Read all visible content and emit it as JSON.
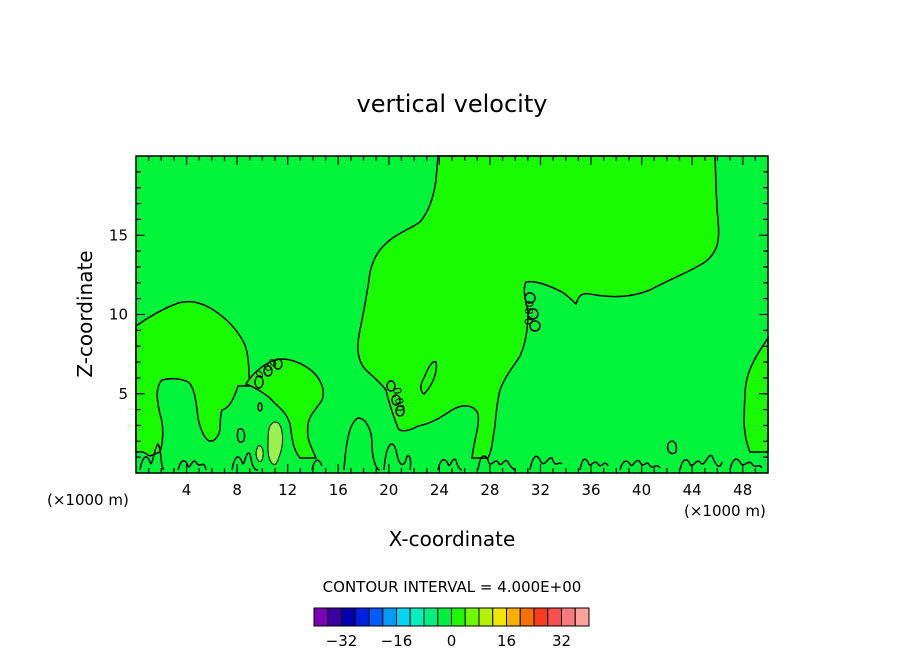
{
  "chart_data": {
    "type": "contour",
    "title": "vertical velocity",
    "xlabel": "X-coordinate",
    "ylabel": "Z-coordinate",
    "x_unit_label": "(×1000 m)",
    "x_unit_label_right": "(×1000 m)",
    "xlim": [
      0,
      50
    ],
    "ylim": [
      0,
      20
    ],
    "xticks": [
      4,
      8,
      12,
      16,
      20,
      24,
      28,
      32,
      36,
      40,
      44,
      48
    ],
    "xtick_labels": [
      "4",
      "8",
      "12",
      "16",
      "20",
      "24",
      "28",
      "32",
      "36",
      "40",
      "44",
      "48"
    ],
    "yticks": [
      5,
      10,
      15
    ],
    "ytick_labels": [
      "5",
      "10",
      "15"
    ],
    "contour_interval_text": "CONTOUR INTERVAL = 4.000E+00",
    "contour_interval": 4.0,
    "fill_colors": {
      "zero_band": "#00f53a",
      "positive_band": "#19fb00",
      "light_band": "#9cf050"
    },
    "contour_labels": [
      {
        "text": "0.00",
        "x": 10.5,
        "z": 6.4,
        "angle": -40
      },
      {
        "text": "0.00",
        "x": 20.5,
        "z": 4.6,
        "angle": 80
      },
      {
        "text": "0.00",
        "x": 31.4,
        "z": 10.1,
        "angle": -88
      }
    ],
    "colorbar": {
      "colors": [
        "#7c00b4",
        "#3c00a0",
        "#0000b0",
        "#0020e0",
        "#005cf8",
        "#009cf8",
        "#00d6f0",
        "#00f0c0",
        "#00f080",
        "#00f040",
        "#20f800",
        "#70f800",
        "#b4f000",
        "#f0e600",
        "#f8b000",
        "#f87000",
        "#f83c1c",
        "#f85050",
        "#f87a7a",
        "#fca0a0"
      ],
      "tick_values": [
        -32,
        -16,
        0,
        16,
        32
      ],
      "tick_labels": [
        "−32",
        "−16",
        "0",
        "16",
        "32"
      ],
      "bounds": [
        -40,
        40
      ]
    }
  }
}
